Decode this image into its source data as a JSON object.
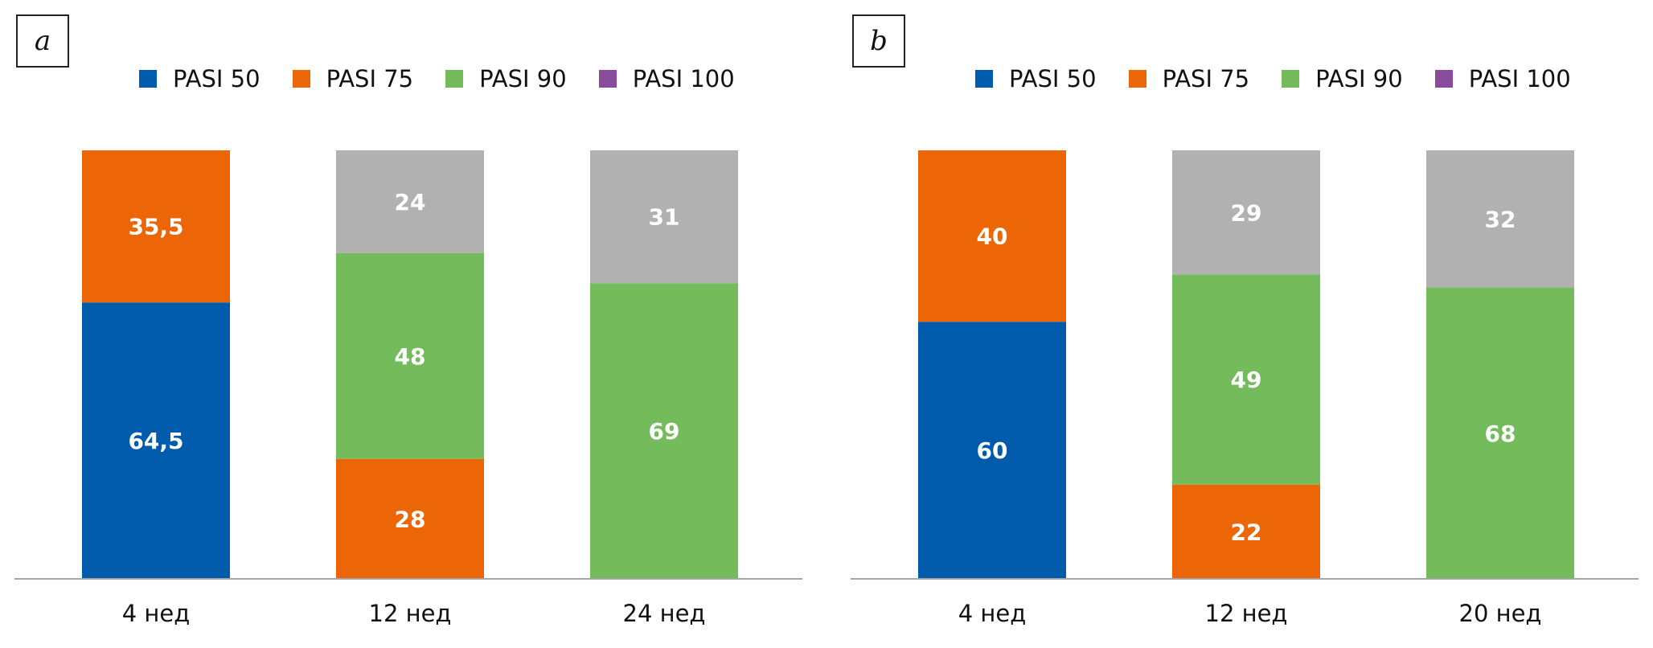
{
  "chart_data": [
    {
      "type": "bar",
      "stacked": true,
      "panel_label": "a",
      "categories": [
        "4 нед",
        "12 нед",
        "24 нед"
      ],
      "legend": [
        {
          "name": "PASI 50",
          "color": "#005BAC"
        },
        {
          "name": "PASI 75",
          "color": "#EC6608"
        },
        {
          "name": "PASI 90",
          "color": "#74BB5B"
        },
        {
          "name": "PASI 100",
          "color": "#8A4D9E"
        }
      ],
      "stacks": [
        [
          {
            "series": "PASI 50",
            "value": 64.5,
            "label": "64,5",
            "color": "#005BAC"
          },
          {
            "series": "PASI 75",
            "value": 35.5,
            "label": "35,5",
            "color": "#EC6608"
          }
        ],
        [
          {
            "series": "PASI 75",
            "value": 28,
            "label": "28",
            "color": "#EC6608"
          },
          {
            "series": "PASI 90",
            "value": 48,
            "label": "48",
            "color": "#74BB5B"
          },
          {
            "series": "PASI 100",
            "value": 24,
            "label": "24",
            "color": "#B2B1B1"
          }
        ],
        [
          {
            "series": "PASI 90",
            "value": 69,
            "label": "69",
            "color": "#74BB5B"
          },
          {
            "series": "PASI 100",
            "value": 31,
            "label": "31",
            "color": "#B2B1B1"
          }
        ]
      ],
      "ylim": [
        0,
        100
      ],
      "grid": false,
      "legend_position": "top"
    },
    {
      "type": "bar",
      "stacked": true,
      "panel_label": "b",
      "categories": [
        "4 нед",
        "12 нед",
        "20 нед"
      ],
      "legend": [
        {
          "name": "PASI 50",
          "color": "#005BAC"
        },
        {
          "name": "PASI 75",
          "color": "#EC6608"
        },
        {
          "name": "PASI 90",
          "color": "#74BB5B"
        },
        {
          "name": "PASI 100",
          "color": "#8A4D9E"
        }
      ],
      "stacks": [
        [
          {
            "series": "PASI 50",
            "value": 60,
            "label": "60",
            "color": "#005BAC"
          },
          {
            "series": "PASI 75",
            "value": 40,
            "label": "40",
            "color": "#EC6608"
          }
        ],
        [
          {
            "series": "PASI 75",
            "value": 22,
            "label": "22",
            "color": "#EC6608"
          },
          {
            "series": "PASI 90",
            "value": 49,
            "label": "49",
            "color": "#74BB5B"
          },
          {
            "series": "PASI 100",
            "value": 29,
            "label": "29",
            "color": "#B2B1B1"
          }
        ],
        [
          {
            "series": "PASI 90",
            "value": 68,
            "label": "68",
            "color": "#74BB5B"
          },
          {
            "series": "PASI 100",
            "value": 32,
            "label": "32",
            "color": "#B2B1B1"
          }
        ]
      ],
      "ylim": [
        0,
        100
      ],
      "grid": false,
      "legend_position": "top"
    }
  ]
}
